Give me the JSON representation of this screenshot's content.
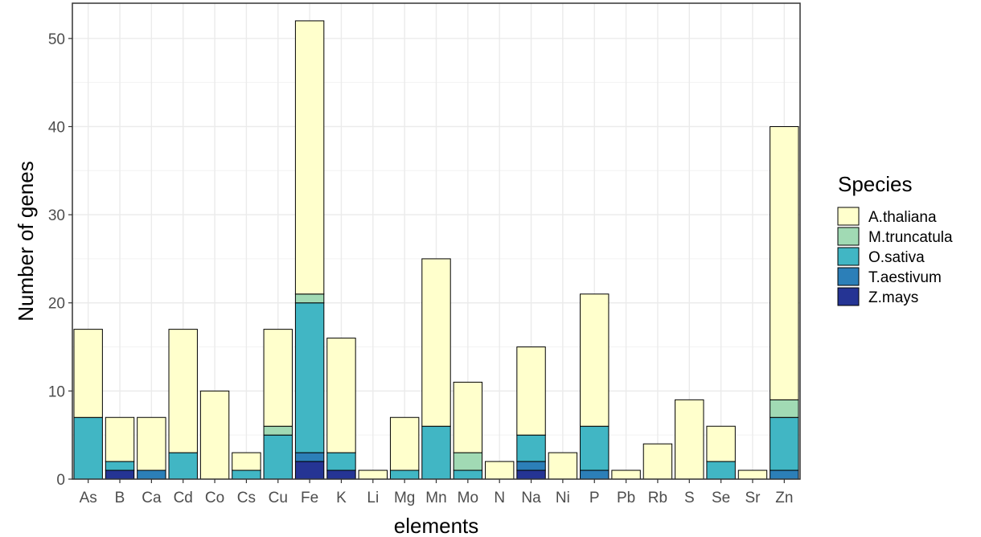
{
  "chart_data": {
    "type": "bar",
    "stacked": true,
    "title": "",
    "xlabel": "elements",
    "ylabel": "Number of genes",
    "ylim": [
      0,
      54
    ],
    "yticks": [
      0,
      10,
      20,
      30,
      40,
      50
    ],
    "grid": true,
    "legend_position": "right",
    "legend_title": "Species",
    "categories": [
      "As",
      "B",
      "Ca",
      "Cd",
      "Co",
      "Cs",
      "Cu",
      "Fe",
      "K",
      "Li",
      "Mg",
      "Mn",
      "Mo",
      "N",
      "Na",
      "Ni",
      "P",
      "Pb",
      "Rb",
      "S",
      "Se",
      "Sr",
      "Zn"
    ],
    "series": [
      {
        "name": "A.thaliana",
        "color": "#ffffcc",
        "values": [
          10,
          5,
          6,
          14,
          10,
          2,
          11,
          31,
          13,
          1,
          6,
          19,
          8,
          2,
          10,
          3,
          15,
          1,
          4,
          9,
          4,
          1,
          31
        ]
      },
      {
        "name": "M.truncatula",
        "color": "#a1dab4",
        "values": [
          0,
          0,
          0,
          0,
          0,
          0,
          1,
          1,
          0,
          0,
          0,
          0,
          2,
          0,
          0,
          0,
          0,
          0,
          0,
          0,
          0,
          0,
          2
        ]
      },
      {
        "name": "O.sativa",
        "color": "#41b6c4",
        "values": [
          7,
          1,
          0,
          3,
          0,
          1,
          5,
          17,
          2,
          0,
          1,
          6,
          1,
          0,
          3,
          0,
          5,
          0,
          0,
          0,
          2,
          0,
          6
        ]
      },
      {
        "name": "T.aestivum",
        "color": "#2c7fb8",
        "values": [
          0,
          0,
          1,
          0,
          0,
          0,
          0,
          1,
          0,
          0,
          0,
          0,
          0,
          0,
          1,
          0,
          1,
          0,
          0,
          0,
          0,
          0,
          1
        ]
      },
      {
        "name": "Z.mays",
        "color": "#253494",
        "values": [
          0,
          1,
          0,
          0,
          0,
          0,
          0,
          2,
          1,
          0,
          0,
          0,
          0,
          0,
          1,
          0,
          0,
          0,
          0,
          0,
          0,
          0,
          0
        ]
      }
    ]
  }
}
